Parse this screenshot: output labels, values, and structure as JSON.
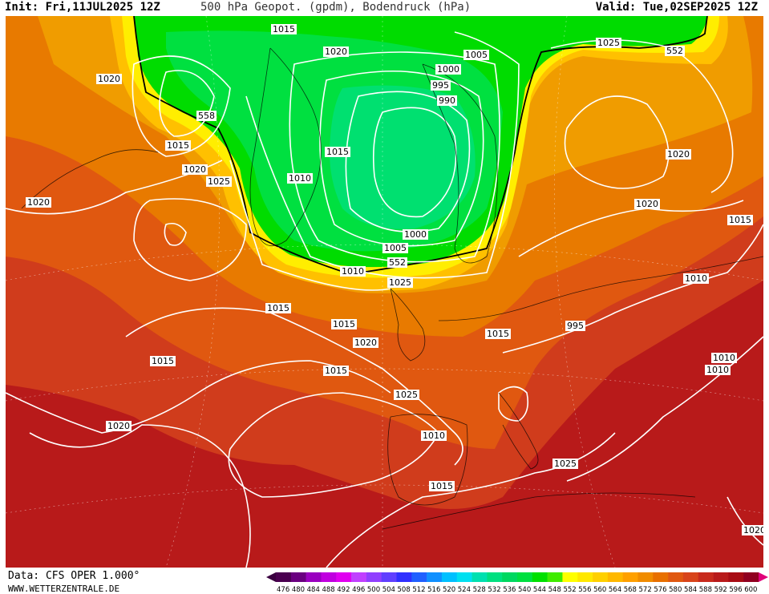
{
  "header": {
    "init": "Init: Fri,11JUL2025 12Z",
    "title": "500 hPa Geopot. (gpdm), Bodendruck (hPa)",
    "valid": "Valid: Tue,02SEP2025 12Z"
  },
  "footer": {
    "source": "Data: CFS OPER 1.000°",
    "website": "WWW.WETTERZENTRALE.DE"
  },
  "colors": {
    "low_green": "#00e070",
    "green": "#00e000",
    "yellow": "#ffe800",
    "orange": "#f08c00",
    "red": "#d8341c",
    "dark_red": "#a00016"
  },
  "legend": {
    "levels": [
      "476",
      "480",
      "484",
      "488",
      "492",
      "496",
      "500",
      "504",
      "508",
      "512",
      "516",
      "520",
      "524",
      "528",
      "532",
      "536",
      "540",
      "544",
      "548",
      "552",
      "556",
      "560",
      "564",
      "568",
      "572",
      "576",
      "580",
      "584",
      "588",
      "592",
      "596",
      "600"
    ],
    "colors": [
      "#4a0050",
      "#6a0080",
      "#9a00c0",
      "#c000e0",
      "#e000f0",
      "#c040ff",
      "#9040ff",
      "#6040ff",
      "#3030ff",
      "#2060ff",
      "#1090ff",
      "#00c0ff",
      "#00e0f0",
      "#00e0b0",
      "#00e080",
      "#00d860",
      "#00e040",
      "#00e000",
      "#40ec00",
      "#ffff00",
      "#ffe800",
      "#ffd000",
      "#ffb800",
      "#ffa000",
      "#f08c00",
      "#e87000",
      "#e05810",
      "#d8441a",
      "#c82a1c",
      "#b81a1a",
      "#a80c14",
      "#900020"
    ]
  },
  "map_labels": [
    {
      "text": "1015"
    },
    {
      "text": "1020"
    },
    {
      "text": "1020"
    },
    {
      "text": "1015"
    },
    {
      "text": "1010"
    },
    {
      "text": "1005"
    },
    {
      "text": "1000"
    },
    {
      "text": "995"
    },
    {
      "text": "990"
    },
    {
      "text": "1025"
    },
    {
      "text": "552"
    },
    {
      "text": "1020"
    },
    {
      "text": "558"
    },
    {
      "text": "1015"
    },
    {
      "text": "1020"
    },
    {
      "text": "1025"
    },
    {
      "text": "1020"
    },
    {
      "text": "1015"
    },
    {
      "text": "1010"
    },
    {
      "text": "995"
    },
    {
      "text": "1000"
    },
    {
      "text": "1005"
    },
    {
      "text": "552"
    },
    {
      "text": "1010"
    },
    {
      "text": "1025"
    },
    {
      "text": "1020"
    },
    {
      "text": "1015"
    },
    {
      "text": "1015"
    },
    {
      "text": "1020"
    },
    {
      "text": "1015"
    },
    {
      "text": "1015"
    },
    {
      "text": "1025"
    },
    {
      "text": "1020"
    },
    {
      "text": "1010"
    },
    {
      "text": "1015"
    },
    {
      "text": "1025"
    },
    {
      "text": "1020"
    },
    {
      "text": "1010"
    },
    {
      "text": "1015"
    },
    {
      "text": "1010"
    }
  ]
}
